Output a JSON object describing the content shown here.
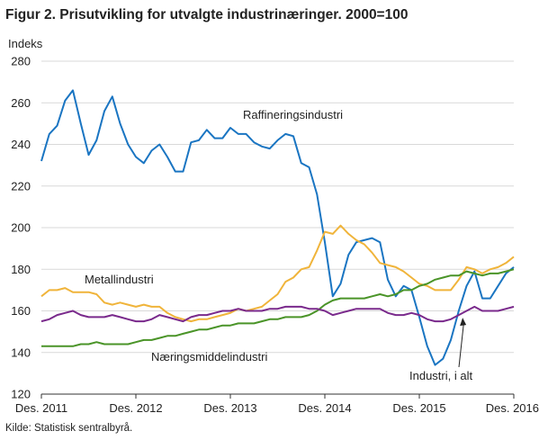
{
  "title": "Figur 2. Prisutvikling for utvalgte industrinæringer. 2000=100",
  "source": "Kilde: Statistisk sentralbyrå.",
  "chart_data": {
    "type": "line",
    "ylabel": "Indeks",
    "xlabel": "",
    "ylim": [
      120,
      280
    ],
    "yticks": [
      120,
      140,
      160,
      180,
      200,
      220,
      240,
      260,
      280
    ],
    "xlim": [
      0,
      60
    ],
    "x_ticks": [
      {
        "x": 0,
        "label": "Des. 2011"
      },
      {
        "x": 12,
        "label": "Des. 2012"
      },
      {
        "x": 24,
        "label": "Des. 2013"
      },
      {
        "x": 36,
        "label": "Des. 2014"
      },
      {
        "x": 48,
        "label": "Des. 2015"
      },
      {
        "x": 60,
        "label": "Des. 2016"
      }
    ],
    "grid": "horizontal",
    "annotations": [
      {
        "text": "Raffineringsindustri",
        "series": "Raffineringsindustri"
      },
      {
        "text": "Metallindustri",
        "series": "Metallindustri"
      },
      {
        "text": "Næringsmiddelindustri",
        "series": "Næringsmiddelindustri"
      },
      {
        "text": "Industri, i alt",
        "series": "Industri, i alt"
      }
    ],
    "series": [
      {
        "name": "Raffineringsindustri",
        "color": "#1a75c2",
        "values": [
          232,
          245,
          249,
          261,
          266,
          250,
          235,
          242,
          256,
          263,
          250,
          240,
          234,
          231,
          237,
          240,
          234,
          227,
          227,
          241,
          242,
          247,
          243,
          243,
          248,
          245,
          245,
          241,
          239,
          238,
          242,
          245,
          244,
          231,
          229,
          216,
          193,
          167,
          173,
          187,
          193,
          194,
          195,
          193,
          175,
          167,
          172,
          170,
          157,
          143,
          134,
          137,
          146,
          160,
          172,
          179,
          166,
          166,
          172,
          178,
          181
        ]
      },
      {
        "name": "Metallindustri",
        "color": "#f0b43a",
        "values": [
          167,
          170,
          170,
          171,
          169,
          169,
          169,
          168,
          164,
          163,
          164,
          163,
          162,
          163,
          162,
          162,
          159,
          157,
          156,
          155,
          156,
          156,
          157,
          158,
          159,
          161,
          160,
          161,
          162,
          165,
          168,
          174,
          176,
          180,
          181,
          189,
          198,
          197,
          201,
          197,
          194,
          192,
          188,
          183,
          182,
          181,
          179,
          176,
          173,
          172,
          170,
          170,
          170,
          175,
          181,
          180,
          178,
          180,
          181,
          183,
          186
        ]
      },
      {
        "name": "Næringsmiddelindustri",
        "color": "#4a9428",
        "values": [
          143,
          143,
          143,
          143,
          143,
          144,
          144,
          145,
          144,
          144,
          144,
          144,
          145,
          146,
          146,
          147,
          148,
          148,
          149,
          150,
          151,
          151,
          152,
          153,
          153,
          154,
          154,
          154,
          155,
          156,
          156,
          157,
          157,
          157,
          158,
          160,
          163,
          165,
          166,
          166,
          166,
          166,
          167,
          168,
          167,
          168,
          170,
          170,
          172,
          173,
          175,
          176,
          177,
          177,
          179,
          178,
          177,
          178,
          178,
          179,
          180
        ]
      },
      {
        "name": "Industri, i alt",
        "color": "#7a2a8c",
        "values": [
          155,
          156,
          158,
          159,
          160,
          158,
          157,
          157,
          157,
          158,
          157,
          156,
          155,
          155,
          156,
          158,
          157,
          156,
          155,
          157,
          158,
          158,
          159,
          160,
          160,
          161,
          160,
          160,
          160,
          161,
          161,
          162,
          162,
          162,
          161,
          161,
          160,
          158,
          159,
          160,
          161,
          161,
          161,
          161,
          159,
          158,
          158,
          159,
          158,
          156,
          155,
          155,
          156,
          158,
          160,
          162,
          160,
          160,
          160,
          161,
          162
        ]
      }
    ]
  }
}
